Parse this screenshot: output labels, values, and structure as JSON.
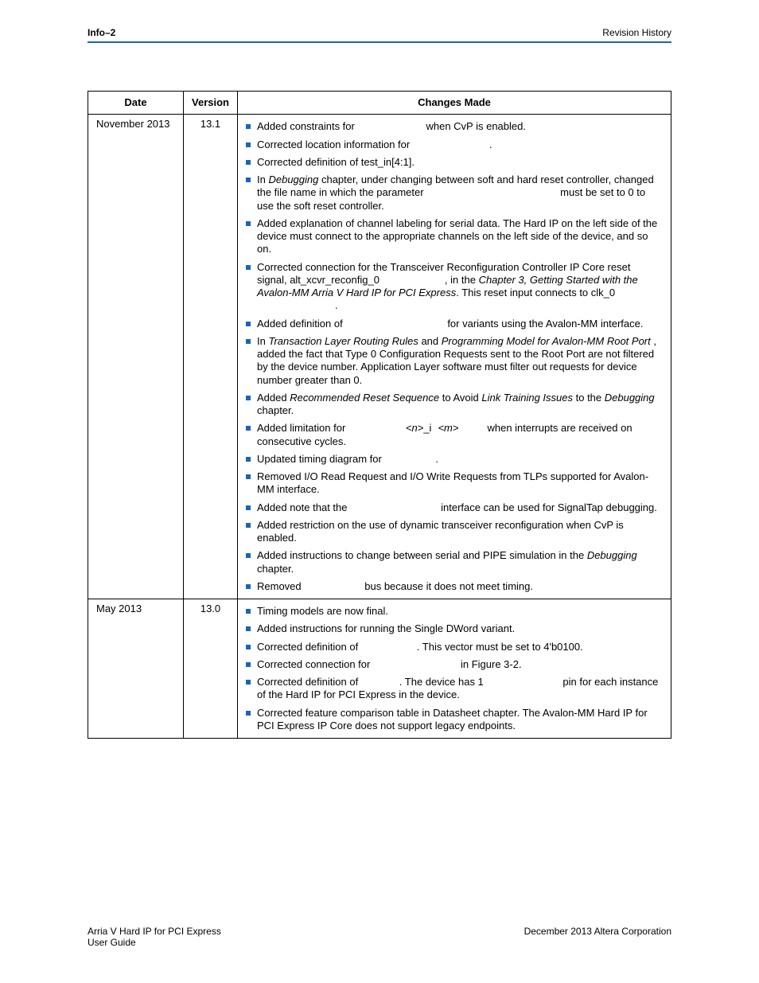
{
  "colors": {
    "accent": "#1b64b6",
    "text": "#000000",
    "background": "#ffffff",
    "border": "#000000"
  },
  "header": {
    "left": "Info–2",
    "right": "Revision History"
  },
  "table": {
    "headers": {
      "date": "Date",
      "version": "Version",
      "changes": "Changes Made"
    },
    "rows": [
      {
        "date": "November 2013",
        "version": "13.1",
        "items": [
          [
            {
              "t": "Added constraints for "
            },
            {
              "t": "when CvP is enabled.",
              "pre_gap": "86px"
            }
          ],
          [
            {
              "t": "Corrected location information for "
            },
            {
              "t": ".",
              "pre_gap": "96px"
            }
          ],
          [
            {
              "t": "Corrected definition of test_in[4:1]."
            }
          ],
          [
            {
              "t": "In "
            },
            {
              "t": "Debugging",
              "italic": true
            },
            {
              "t": " chapter, under changing between soft and hard reset controller, changed the file name in which the parameter "
            },
            {
              "t": "must be set to 0 to use the soft reset controller.",
              "pre_gap": "168px"
            }
          ],
          [
            {
              "t": "Added explanation of channel labeling for serial data. The Hard IP on the left side of the device must connect to the appropriate channels on the left side of the device, and so on."
            }
          ],
          [
            {
              "t": "Corrected connection for the Transceiver Reconfiguration Controller IP Core reset signal, alt_xcvr_reconfig_0"
            },
            {
              "t": ", in the ",
              "pre_gap": "82px"
            },
            {
              "t": "Chapter 3, Getting Started with the Avalon-MM Arria V Hard IP for PCI Express",
              "italic": true
            },
            {
              "t": ". This reset input connects to clk_0"
            },
            {
              "t": ".",
              "break_before": true,
              "pre_gap": "98px"
            }
          ],
          [
            {
              "t": "Added definition of "
            },
            {
              "t": "for variants using the Avalon-MM interface.",
              "pre_gap": "128px"
            }
          ],
          [
            {
              "t": "In "
            },
            {
              "t": "Transaction Layer Routing Rules",
              "italic": true
            },
            {
              "t": " and "
            },
            {
              "t": "Programming Model for Avalon-MM Root Port",
              "italic": true
            },
            {
              "t": " , added the fact that Type 0 Configuration Requests sent to the Root Port are not filtered by the device number. Application Layer software must filter out requests for device number greater than 0."
            }
          ],
          [
            {
              "t": "Added "
            },
            {
              "t": "Recommended Reset Sequence",
              "italic": true
            },
            {
              "t": " to Avoid "
            },
            {
              "t": "Link Training Issues",
              "italic": true
            },
            {
              "t": " to the "
            },
            {
              "t": "Debugging",
              "italic": true
            },
            {
              "t": " chapter."
            }
          ],
          [
            {
              "t": "Added limitation for "
            },
            {
              "t": "<n>",
              "italic": true,
              "pre_gap": "72px"
            },
            {
              "t": "_i"
            },
            {
              "t": "<m>",
              "italic": true,
              "pre_gap": "8px"
            },
            {
              "t": "when interrupts are received on consecutive cycles.",
              "pre_gap": "36px"
            }
          ],
          [
            {
              "t": "Updated timing diagram for "
            },
            {
              "t": ".",
              "pre_gap": "64px"
            }
          ],
          [
            {
              "t": "Removed I/O Read Request and I/O Write Requests from TLPs supported for Avalon-MM interface."
            }
          ],
          [
            {
              "t": "Added note that the "
            },
            {
              "t": "interface can be used for SignalTap debugging.",
              "pre_gap": "114px"
            }
          ],
          [
            {
              "t": "Added restriction on the use of dynamic transceiver reconfiguration when CvP is enabled."
            }
          ],
          [
            {
              "t": "Added instructions to change between serial and PIPE simulation in the "
            },
            {
              "t": "Debugging",
              "italic": true
            },
            {
              "t": " chapter."
            }
          ],
          [
            {
              "t": "Removed "
            },
            {
              "t": "bus because it does not meet timing.",
              "pre_gap": "76px"
            }
          ]
        ]
      },
      {
        "date": "May 2013",
        "version": "13.0",
        "items": [
          [
            {
              "t": "Timing models are now final."
            }
          ],
          [
            {
              "t": "Added instructions for running the Single DWord variant."
            }
          ],
          [
            {
              "t": "Corrected definition of "
            },
            {
              "t": ". This vector must be set to 4'b0100.",
              "pre_gap": "70px"
            }
          ],
          [
            {
              "t": "Corrected connection for "
            },
            {
              "t": "in Figure 3-2.",
              "pre_gap": "110px"
            }
          ],
          [
            {
              "t": "Corrected definition of "
            },
            {
              "t": ". The device has 1 ",
              "pre_gap": "48px"
            },
            {
              "t": "pin for each instance of the Hard IP for PCI Express in the device.",
              "pre_gap": "96px"
            }
          ],
          [
            {
              "t": "Corrected feature comparison table in Datasheet chapter. The Avalon-MM Hard IP for PCI Express IP Core does not support legacy endpoints."
            }
          ]
        ]
      }
    ]
  },
  "footer": {
    "left_line1": "Arria V Hard IP for PCI Express",
    "left_line2": "User Guide",
    "right": "December  2013   Altera Corporation"
  }
}
